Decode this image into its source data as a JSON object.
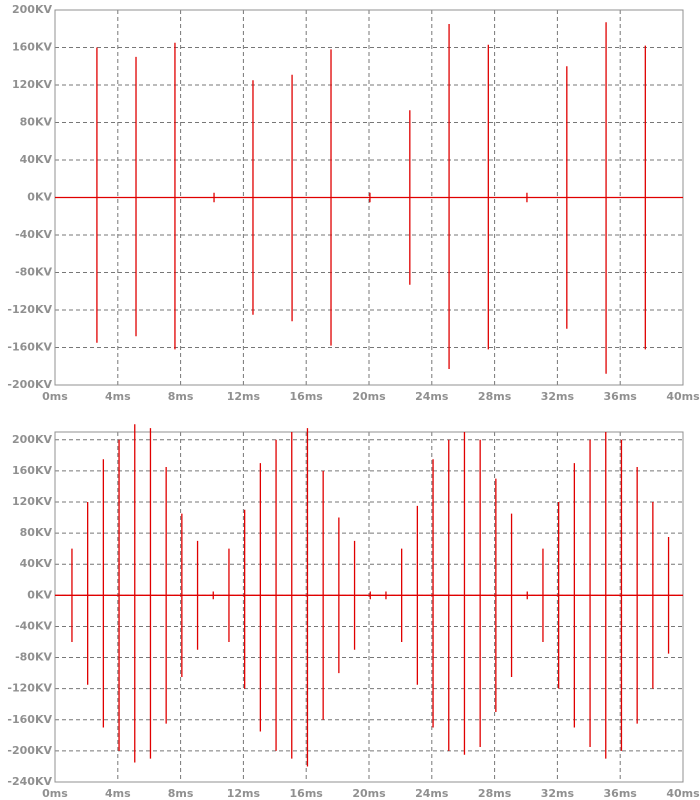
{
  "chart_data": [
    {
      "type": "line",
      "grid": true,
      "xlim": [
        0,
        40
      ],
      "xticks": [
        {
          "value": 0,
          "label": "0ms"
        },
        {
          "value": 4,
          "label": "4ms"
        },
        {
          "value": 8,
          "label": "8ms"
        },
        {
          "value": 12,
          "label": "12ms"
        },
        {
          "value": 16,
          "label": "16ms"
        },
        {
          "value": 20,
          "label": "20ms"
        },
        {
          "value": 24,
          "label": "24ms"
        },
        {
          "value": 28,
          "label": "28ms"
        },
        {
          "value": 32,
          "label": "32ms"
        },
        {
          "value": 36,
          "label": "36ms"
        },
        {
          "value": 40,
          "label": "40ms"
        }
      ],
      "ylim": [
        -200,
        200
      ],
      "yticks": [
        {
          "value": -200,
          "label": "-200KV"
        },
        {
          "value": -160,
          "label": "-160KV"
        },
        {
          "value": -120,
          "label": "-120KV"
        },
        {
          "value": -80,
          "label": "-80KV"
        },
        {
          "value": -40,
          "label": "-40KV"
        },
        {
          "value": 0,
          "label": "0KV"
        },
        {
          "value": 40,
          "label": "40KV"
        },
        {
          "value": 80,
          "label": "80KV"
        },
        {
          "value": 120,
          "label": "120KV"
        },
        {
          "value": 160,
          "label": "160KV"
        },
        {
          "value": 200,
          "label": "200KV"
        }
      ],
      "x": [
        0,
        2.67,
        2.67,
        2.67,
        2.67,
        5.16,
        5.16,
        5.16,
        5.16,
        7.64,
        7.64,
        7.64,
        7.64,
        10.13,
        10.13,
        10.13,
        10.13,
        12.61,
        12.61,
        12.61,
        12.61,
        15.1,
        15.1,
        15.1,
        15.1,
        17.58,
        17.58,
        17.58,
        17.58,
        20.06,
        20.06,
        20.06,
        20.06,
        22.6,
        22.6,
        22.6,
        22.6,
        25.1,
        25.1,
        25.1,
        25.1,
        27.6,
        27.6,
        27.6,
        27.6,
        30.06,
        30.06,
        30.06,
        30.06,
        32.6,
        32.6,
        32.6,
        32.6,
        35.1,
        35.1,
        35.1,
        35.1,
        37.6,
        37.6,
        37.6,
        37.6,
        40
      ],
      "series": [
        {
          "color": "#e00000",
          "values": [
            0,
            0,
            160,
            -155,
            0,
            0,
            150,
            -148,
            0,
            0,
            165,
            -162,
            0,
            0,
            5,
            -5,
            0,
            0,
            125,
            -125,
            0,
            0,
            131,
            -132,
            0,
            0,
            158,
            -158,
            0,
            0,
            5,
            -5,
            0,
            0,
            93,
            -93,
            0,
            0,
            185,
            -183,
            0,
            0,
            163,
            -162,
            0,
            0,
            5,
            -5,
            0,
            0,
            140,
            -140,
            0,
            0,
            187,
            -188,
            0,
            0,
            162,
            -162,
            0,
            0
          ]
        }
      ]
    },
    {
      "type": "line",
      "grid": true,
      "xlim": [
        0,
        40
      ],
      "xticks": [
        {
          "value": 0,
          "label": "0ms"
        },
        {
          "value": 4,
          "label": "4ms"
        },
        {
          "value": 8,
          "label": "8ms"
        },
        {
          "value": 12,
          "label": "12ms"
        },
        {
          "value": 16,
          "label": "16ms"
        },
        {
          "value": 20,
          "label": "20ms"
        },
        {
          "value": 24,
          "label": "24ms"
        },
        {
          "value": 28,
          "label": "28ms"
        },
        {
          "value": 32,
          "label": "32ms"
        },
        {
          "value": 36,
          "label": "36ms"
        },
        {
          "value": 40,
          "label": "40ms"
        }
      ],
      "ylim": [
        -240,
        210
      ],
      "yticks": [
        {
          "value": -240,
          "label": "-240KV"
        },
        {
          "value": -200,
          "label": "-200KV"
        },
        {
          "value": -160,
          "label": "-160KV"
        },
        {
          "value": -120,
          "label": "-120KV"
        },
        {
          "value": -80,
          "label": "-80KV"
        },
        {
          "value": -40,
          "label": "-40KV"
        },
        {
          "value": 0,
          "label": "0KV"
        },
        {
          "value": 40,
          "label": "40KV"
        },
        {
          "value": 80,
          "label": "80KV"
        },
        {
          "value": 120,
          "label": "120KV"
        },
        {
          "value": 160,
          "label": "160KV"
        },
        {
          "value": 200,
          "label": "200KV"
        }
      ],
      "x": [
        0,
        1.08,
        1.08,
        1.08,
        1.08,
        2.08,
        2.08,
        2.08,
        2.08,
        3.08,
        3.08,
        3.08,
        3.08,
        4.08,
        4.08,
        4.08,
        4.08,
        5.08,
        5.08,
        5.08,
        5.08,
        6.08,
        6.08,
        6.08,
        6.08,
        7.08,
        7.08,
        7.08,
        7.08,
        8.08,
        8.08,
        8.08,
        8.08,
        9.08,
        9.08,
        9.08,
        9.08,
        10.08,
        10.08,
        10.08,
        10.08,
        11.08,
        11.08,
        11.08,
        11.08,
        12.08,
        12.08,
        12.08,
        12.08,
        13.08,
        13.08,
        13.08,
        13.08,
        14.08,
        14.08,
        14.08,
        14.08,
        15.08,
        15.08,
        15.08,
        15.08,
        16.08,
        16.08,
        16.08,
        16.08,
        17.08,
        17.08,
        17.08,
        17.08,
        18.08,
        18.08,
        18.08,
        18.08,
        19.08,
        19.08,
        19.08,
        19.08,
        20.08,
        20.08,
        20.08,
        20.08,
        21.08,
        21.08,
        21.08,
        21.08,
        22.08,
        22.08,
        22.08,
        22.08,
        23.08,
        23.08,
        23.08,
        23.08,
        24.08,
        24.08,
        24.08,
        24.08,
        25.08,
        25.08,
        25.08,
        25.08,
        26.08,
        26.08,
        26.08,
        26.08,
        27.08,
        27.08,
        27.08,
        27.08,
        28.08,
        28.08,
        28.08,
        28.08,
        29.08,
        29.08,
        29.08,
        29.08,
        30.08,
        30.08,
        30.08,
        30.08,
        31.08,
        31.08,
        31.08,
        31.08,
        32.08,
        32.08,
        32.08,
        32.08,
        33.08,
        33.08,
        33.08,
        33.08,
        34.08,
        34.08,
        34.08,
        34.08,
        35.08,
        35.08,
        35.08,
        35.08,
        36.08,
        36.08,
        36.08,
        36.08,
        37.08,
        37.08,
        37.08,
        37.08,
        38.08,
        38.08,
        38.08,
        38.08,
        39.08,
        39.08,
        39.08,
        39.08,
        40
      ],
      "series": [
        {
          "color": "#e00000",
          "values": [
            0,
            0,
            60,
            -60,
            0,
            0,
            120,
            -115,
            0,
            0,
            175,
            -170,
            0,
            0,
            200,
            -200,
            0,
            0,
            220,
            -215,
            0,
            0,
            215,
            -210,
            0,
            0,
            165,
            -165,
            0,
            0,
            105,
            -105,
            0,
            0,
            70,
            -70,
            0,
            0,
            5,
            -5,
            0,
            0,
            60,
            -60,
            0,
            0,
            110,
            -120,
            0,
            0,
            170,
            -175,
            0,
            0,
            200,
            -200,
            0,
            0,
            210,
            -210,
            0,
            0,
            215,
            -220,
            0,
            0,
            160,
            -160,
            0,
            0,
            100,
            -100,
            0,
            0,
            70,
            -70,
            0,
            0,
            5,
            -5,
            0,
            0,
            5,
            -5,
            0,
            0,
            60,
            -60,
            0,
            0,
            115,
            -115,
            0,
            0,
            175,
            -170,
            0,
            0,
            200,
            -200,
            0,
            0,
            210,
            -205,
            0,
            0,
            200,
            -195,
            0,
            0,
            150,
            -150,
            0,
            0,
            105,
            -105,
            0,
            0,
            5,
            -5,
            0,
            0,
            60,
            -60,
            0,
            0,
            120,
            -120,
            0,
            0,
            170,
            -170,
            0,
            0,
            200,
            -195,
            0,
            0,
            210,
            -210,
            0,
            0,
            200,
            -200,
            0,
            0,
            165,
            -165,
            0,
            0,
            120,
            -120,
            0,
            0,
            75,
            -75,
            0,
            0
          ]
        }
      ]
    }
  ]
}
